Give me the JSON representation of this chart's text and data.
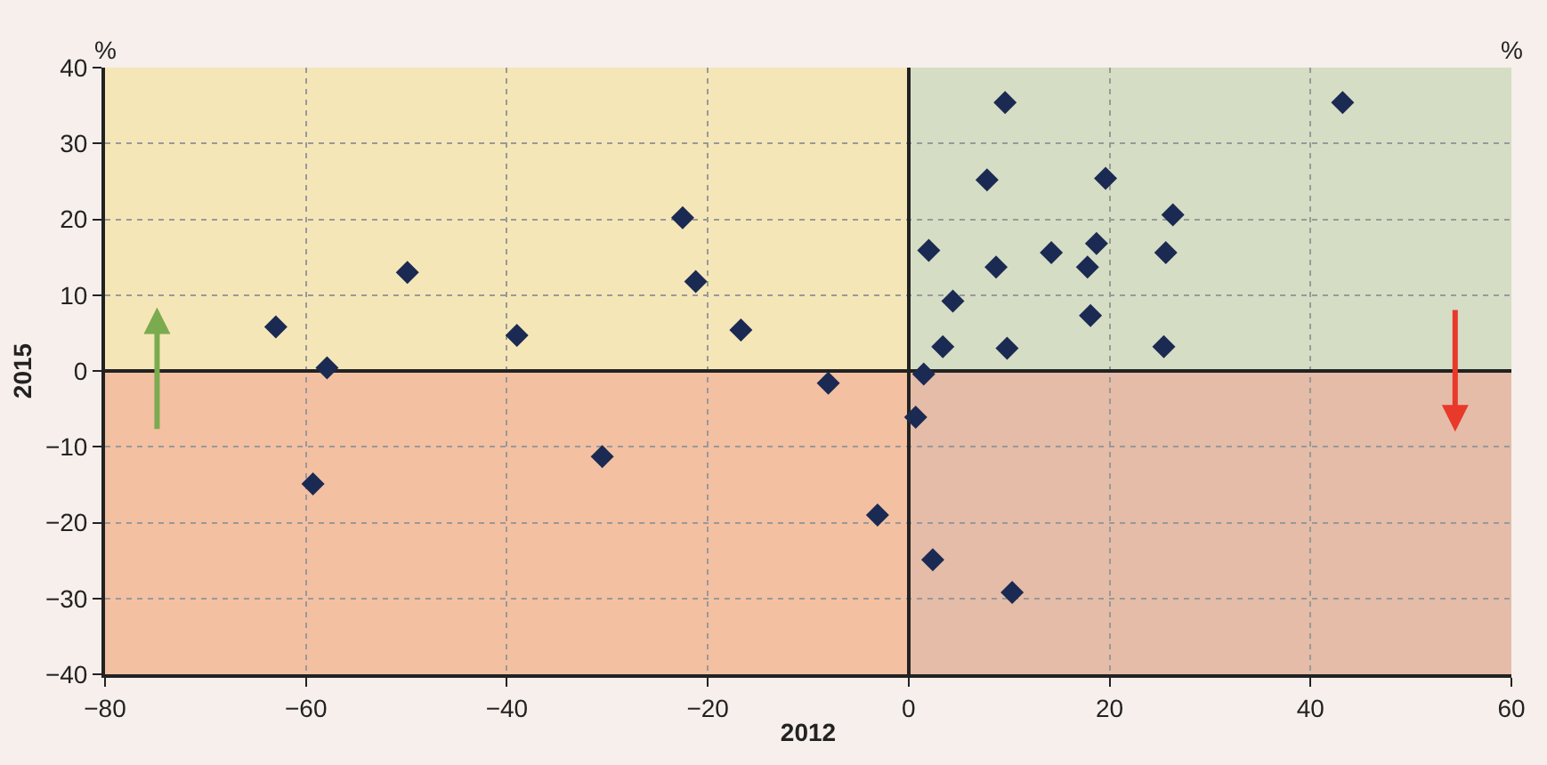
{
  "chart_data": {
    "type": "scatter",
    "xlabel": "2012",
    "ylabel": "2015",
    "annotations": [
      "%",
      "%"
    ],
    "x": [
      -63.0,
      -57.9,
      -49.9,
      -59.3,
      -39.0,
      -30.5,
      -22.5,
      -21.2,
      -16.7,
      -8.0,
      -3.1,
      9.6,
      43.2,
      7.8,
      19.6,
      26.3,
      2.0,
      14.2,
      18.7,
      25.6,
      8.7,
      17.8,
      4.4,
      18.1,
      3.4,
      9.8,
      25.4,
      1.5,
      0.7,
      2.4,
      10.3
    ],
    "series": [
      {
        "color": "#1b2a52",
        "values": [
          5.8,
          0.4,
          13.0,
          -14.9,
          4.7,
          -11.3,
          20.2,
          11.8,
          5.4,
          -1.6,
          -19.0,
          35.4,
          35.4,
          25.2,
          25.4,
          20.6,
          15.9,
          15.6,
          16.8,
          15.6,
          13.7,
          13.7,
          9.2,
          7.3,
          3.2,
          3.0,
          3.2,
          -0.4,
          -6.1,
          -24.9,
          -29.2
        ]
      }
    ],
    "marker": "diamond",
    "grid": true,
    "xlim": [
      -80,
      60
    ],
    "xticks": [
      -80,
      -60,
      -40,
      -20,
      0,
      20,
      40,
      60
    ],
    "ylim": [
      -40,
      40
    ],
    "yticks": [
      {
        "value": -40,
        "label": "−40"
      },
      {
        "value": -30,
        "label": "−30"
      },
      {
        "value": -20,
        "label": "−20"
      },
      {
        "value": -10,
        "label": "−10"
      },
      0,
      10,
      20,
      30,
      40
    ],
    "bands": [
      {
        "axis": "x",
        "from": -80,
        "to": 0,
        "color": "#f5e6b8"
      },
      {
        "axis": "x",
        "from": 0,
        "to": 60,
        "color": "#d5ddc4"
      },
      {
        "axis": "y",
        "from": -40,
        "to": 0,
        "color": "#f0a090"
      }
    ]
  }
}
